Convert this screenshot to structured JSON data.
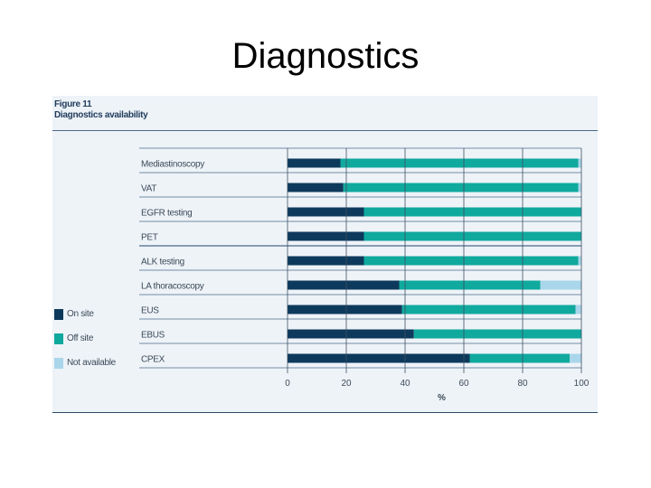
{
  "page": {
    "title": "Diagnostics"
  },
  "figure": {
    "number": "Figure 11",
    "caption": "Diagnostics availability"
  },
  "colors": {
    "on_site": "#0d3a5c",
    "off_site": "#10a99e",
    "not_available": "#a9d6ea",
    "panel": "#eef3f8",
    "gridline": "#3e4f60",
    "row_rule": "#4a6a88"
  },
  "legend": [
    {
      "label": "On site",
      "color_key": "on_site"
    },
    {
      "label": "Off site",
      "color_key": "off_site"
    },
    {
      "label": "Not available",
      "color_key": "not_available"
    }
  ],
  "chart_data": {
    "type": "bar",
    "orientation": "horizontal",
    "stacked": true,
    "title": "Diagnostics availability",
    "xlabel": "%",
    "ylabel": "",
    "xlim": [
      0,
      100
    ],
    "xticks": [
      0,
      20,
      40,
      60,
      80,
      100
    ],
    "grid": true,
    "legend_position": "left",
    "categories": [
      "Mediastinoscopy",
      "VAT",
      "EGFR testing",
      "PET",
      "ALK testing",
      "LA thoracoscopy",
      "EUS",
      "EBUS",
      "CPEX"
    ],
    "series": [
      {
        "name": "On site",
        "color": "#0d3a5c",
        "values": [
          18,
          19,
          26,
          26,
          26,
          38,
          39,
          43,
          62
        ]
      },
      {
        "name": "Off site",
        "color": "#10a99e",
        "values": [
          81,
          80,
          74,
          74,
          73,
          48,
          59,
          57,
          34
        ]
      },
      {
        "name": "Not available",
        "color": "#a9d6ea",
        "values": [
          1,
          1,
          0,
          0,
          1,
          14,
          2,
          0,
          4
        ]
      }
    ]
  }
}
